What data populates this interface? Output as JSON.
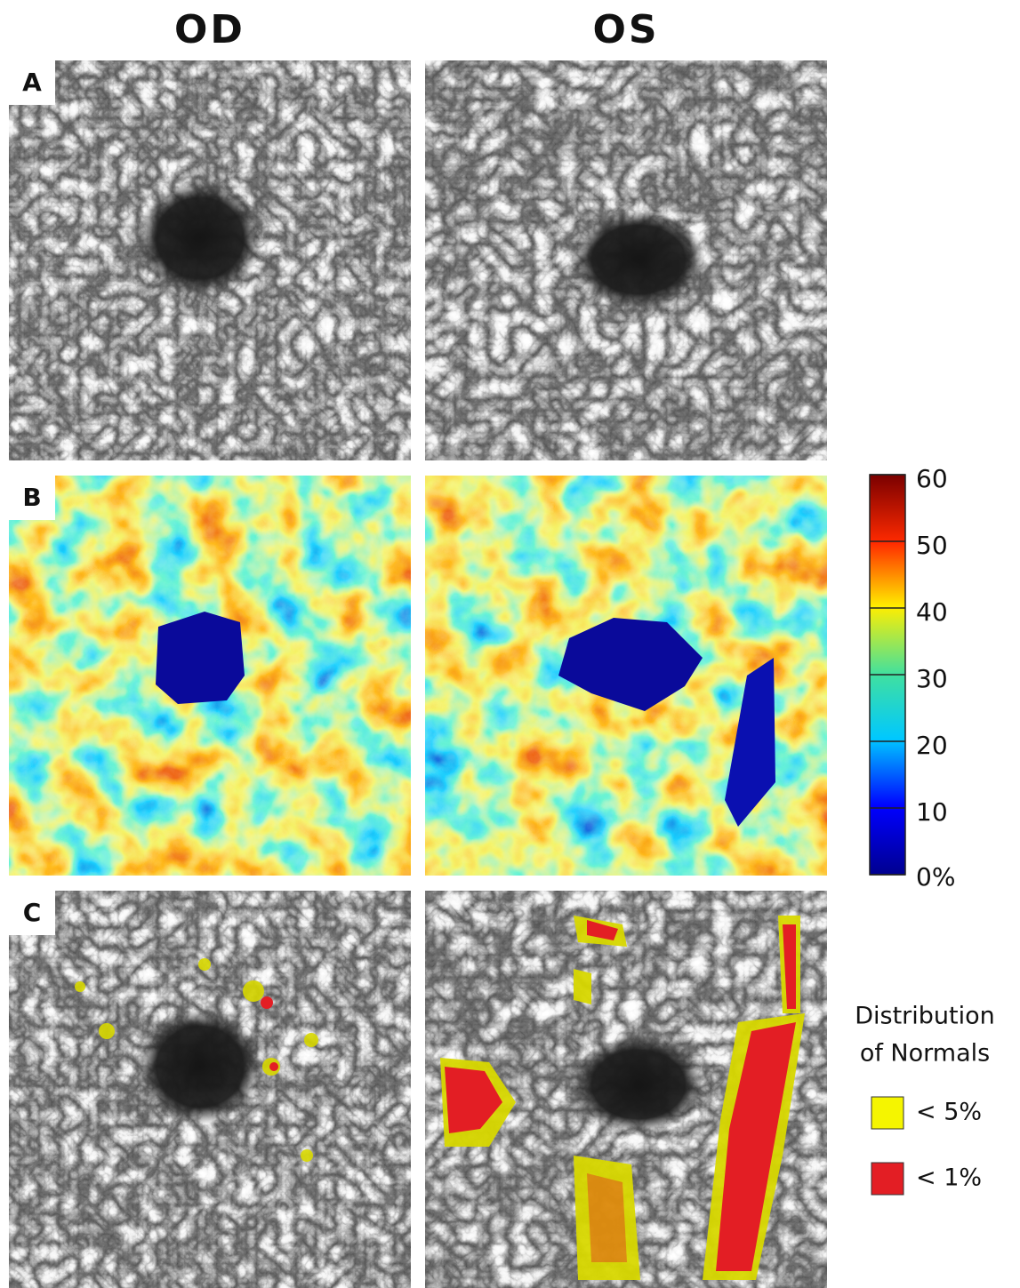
{
  "columns": [
    "OD",
    "OS"
  ],
  "rows": [
    {
      "label": "A"
    },
    {
      "label": "B"
    },
    {
      "label": "C"
    }
  ],
  "colorbar": {
    "lim": [
      0,
      60
    ],
    "ticks": [
      {
        "value": 0,
        "label": "0%"
      },
      10,
      20,
      30,
      40,
      50,
      60
    ]
  },
  "legend": {
    "title_lines": [
      "Distribution",
      "of Normals"
    ],
    "items": [
      {
        "label": "< 5%",
        "color": "#f5f500"
      },
      {
        "label": "< 1%",
        "color": "#e31e24"
      }
    ]
  }
}
